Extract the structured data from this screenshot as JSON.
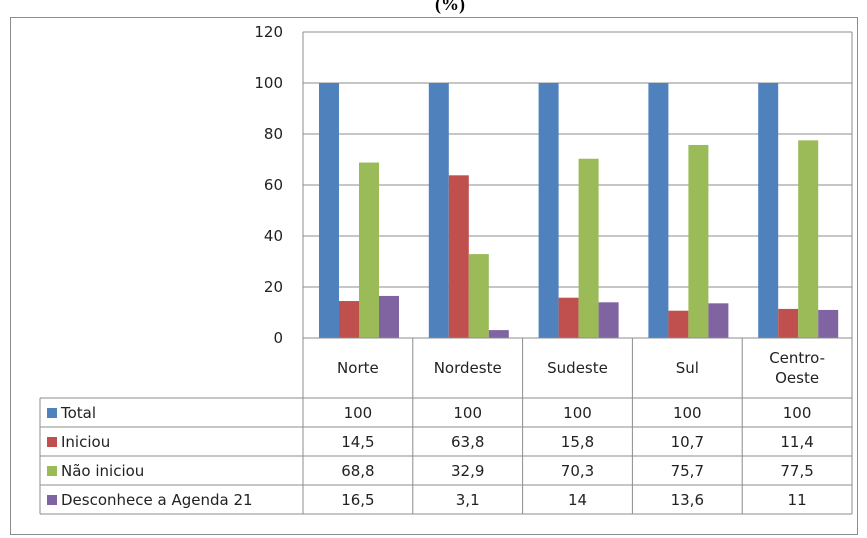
{
  "chart_data": {
    "type": "bar",
    "title_fragment": "(%)",
    "categories": [
      "Norte",
      "Nordeste",
      "Sudeste",
      "Sul",
      "Centro-Oeste"
    ],
    "category_lines": [
      [
        "Norte"
      ],
      [
        "Nordeste"
      ],
      [
        "Sudeste"
      ],
      [
        "Sul"
      ],
      [
        "Centro-",
        "Oeste"
      ]
    ],
    "ylim": [
      0,
      120
    ],
    "yticks": [
      0,
      20,
      40,
      60,
      80,
      100,
      120
    ],
    "grid": true,
    "data_table": true,
    "series": [
      {
        "name": "Total",
        "color": "#4f81bd",
        "values": [
          100,
          100,
          100,
          100,
          100
        ],
        "labels": [
          "100",
          "100",
          "100",
          "100",
          "100"
        ]
      },
      {
        "name": "Iniciou",
        "color": "#c0504d",
        "values": [
          14.5,
          63.8,
          15.8,
          10.7,
          11.4
        ],
        "labels": [
          "14,5",
          "63,8",
          "15,8",
          "10,7",
          "11,4"
        ]
      },
      {
        "name": "Não iniciou",
        "color": "#9bbb59",
        "values": [
          68.8,
          32.9,
          70.3,
          75.7,
          77.5
        ],
        "labels": [
          "68,8",
          "32,9",
          "70,3",
          "75,7",
          "77,5"
        ]
      },
      {
        "name": "Desconhece a Agenda 21",
        "color": "#8064a2",
        "values": [
          16.5,
          3.1,
          14,
          13.6,
          11
        ],
        "labels": [
          "16,5",
          "3,1",
          "14",
          "13,6",
          "11"
        ]
      }
    ]
  }
}
